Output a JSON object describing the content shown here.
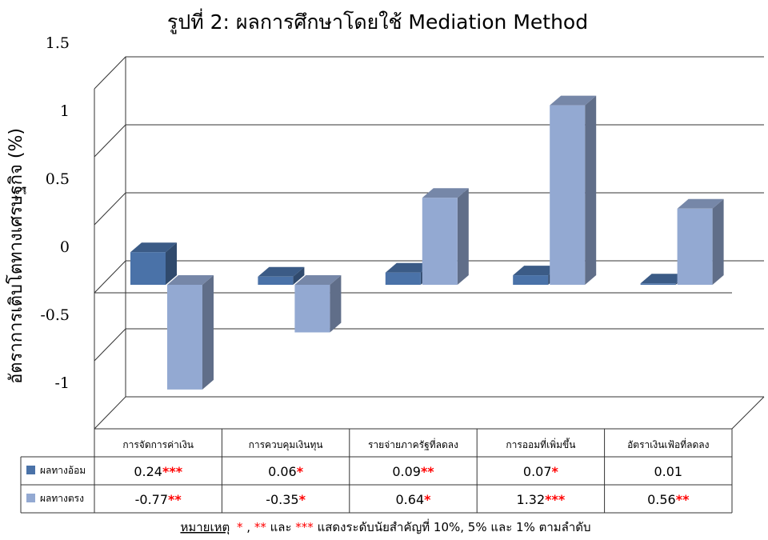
{
  "chart_data": {
    "type": "bar",
    "title": "รูปที่ 2: ผลการศึกษาโดยใช้ Mediation Method",
    "ylabel": "อัตราการเติบโตทางเศรษฐกิจ (%)",
    "xlabel": "",
    "ylim": [
      -1,
      1.5
    ],
    "yticks": [
      "1.5",
      "1",
      "0.5",
      "0",
      "-0.5",
      "-1"
    ],
    "categories": [
      "การจัดการค่าเงิน",
      "การควบคุมเงินทุน",
      "รายจ่ายภาครัฐที่ลดลง",
      "การออมที่เพิ่มขึ้น",
      "อัตราเงินเฟ้อที่ลดลง"
    ],
    "series": [
      {
        "name": "ผลทางอ้อม",
        "color": "#4a72a8",
        "values": [
          0.24,
          0.06,
          0.09,
          0.07,
          0.01
        ],
        "labels": [
          "0.24",
          "0.06",
          "0.09",
          "0.07",
          "0.01"
        ],
        "stars": [
          "***",
          "*",
          "**",
          "*",
          ""
        ]
      },
      {
        "name": "ผลทางตรง",
        "color": "#93a9d2",
        "values": [
          -0.77,
          -0.35,
          0.64,
          1.32,
          0.56
        ],
        "labels": [
          "-0.77",
          "-0.35",
          "0.64",
          "1.32",
          "0.56"
        ],
        "stars": [
          "**",
          "*",
          "*",
          "***",
          "**"
        ]
      }
    ],
    "grid": true,
    "legend": "data-table-left"
  },
  "note": {
    "label": "หมายเหตุ",
    "s1": "*",
    "t1": ", ",
    "s2": "**",
    "t2": " และ ",
    "s3": "***",
    "t3": " แสดงระดับนัยสำคัญที่ 10%, 5% และ 1% ตามลำดับ"
  }
}
